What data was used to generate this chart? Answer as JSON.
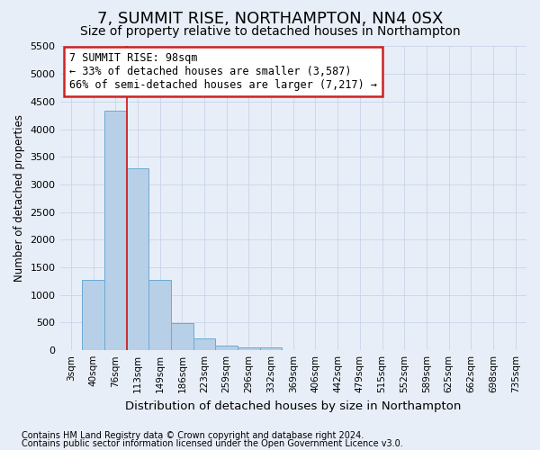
{
  "title": "7, SUMMIT RISE, NORTHAMPTON, NN4 0SX",
  "subtitle": "Size of property relative to detached houses in Northampton",
  "xlabel": "Distribution of detached houses by size in Northampton",
  "ylabel": "Number of detached properties",
  "footnote1": "Contains HM Land Registry data © Crown copyright and database right 2024.",
  "footnote2": "Contains public sector information licensed under the Open Government Licence v3.0.",
  "bin_labels": [
    "3sqm",
    "40sqm",
    "76sqm",
    "113sqm",
    "149sqm",
    "186sqm",
    "223sqm",
    "259sqm",
    "296sqm",
    "332sqm",
    "369sqm",
    "406sqm",
    "442sqm",
    "479sqm",
    "515sqm",
    "552sqm",
    "589sqm",
    "625sqm",
    "662sqm",
    "698sqm",
    "735sqm"
  ],
  "bar_values": [
    0,
    1270,
    4330,
    3300,
    1280,
    490,
    220,
    90,
    55,
    50,
    0,
    0,
    0,
    0,
    0,
    0,
    0,
    0,
    0,
    0,
    0
  ],
  "bar_color": "#b8cfe8",
  "bar_edge_color": "#6aaad4",
  "grid_color": "#c8d4e8",
  "bg_color": "#e8eef8",
  "vline_x": 2.5,
  "vline_color": "#cc2222",
  "ylim": [
    0,
    5500
  ],
  "yticks": [
    0,
    500,
    1000,
    1500,
    2000,
    2500,
    3000,
    3500,
    4000,
    4500,
    5000,
    5500
  ],
  "annotation_box_text": "7 SUMMIT RISE: 98sqm\n← 33% of detached houses are smaller (3,587)\n66% of semi-detached houses are larger (7,217) →",
  "annotation_box_color": "#cc2222",
  "annotation_box_bg": "#ffffff",
  "title_fontsize": 13,
  "subtitle_fontsize": 10
}
